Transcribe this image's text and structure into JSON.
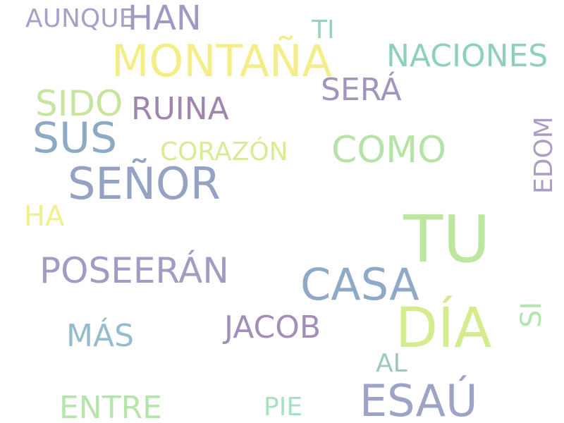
{
  "words": [
    {
      "text": "AUNQUE",
      "color": "#a5a2c8"
    },
    {
      "text": "HAN",
      "color": "#9f9ac0"
    },
    {
      "text": "TI",
      "color": "#9ad3b8"
    },
    {
      "text": "MONTAÑA",
      "color": "#f4ee8a"
    },
    {
      "text": "NACIONES",
      "color": "#8fd0bd"
    },
    {
      "text": "SIDO",
      "color": "#c7e59e"
    },
    {
      "text": "RUINA",
      "color": "#9f86ad"
    },
    {
      "text": "SERÁ",
      "color": "#a295bd"
    },
    {
      "text": "SUS",
      "color": "#8ea9c2"
    },
    {
      "text": "CORAZÓN",
      "color": "#d6ec95"
    },
    {
      "text": "COMO",
      "color": "#b7e3a6"
    },
    {
      "text": "EDOM",
      "color": "#ad9dc4"
    },
    {
      "text": "SEÑOR",
      "color": "#96a2c3"
    },
    {
      "text": "HA",
      "color": "#f2ef8e"
    },
    {
      "text": "TU",
      "color": "#bde6a1"
    },
    {
      "text": "POSEERÁN",
      "color": "#a39bc3"
    },
    {
      "text": "CASA",
      "color": "#8fa9c6"
    },
    {
      "text": "SI",
      "color": "#b5e5ae"
    },
    {
      "text": "JACOB",
      "color": "#a28fb9"
    },
    {
      "text": "DÍA",
      "color": "#d4ec8e"
    },
    {
      "text": "MÁS",
      "color": "#95bccb"
    },
    {
      "text": "AL",
      "color": "#9dc8c0"
    },
    {
      "text": "ENTRE",
      "color": "#b5e5ad"
    },
    {
      "text": "PIE",
      "color": "#a6e1c2"
    },
    {
      "text": "ESAÚ",
      "color": "#9da4c6"
    }
  ]
}
